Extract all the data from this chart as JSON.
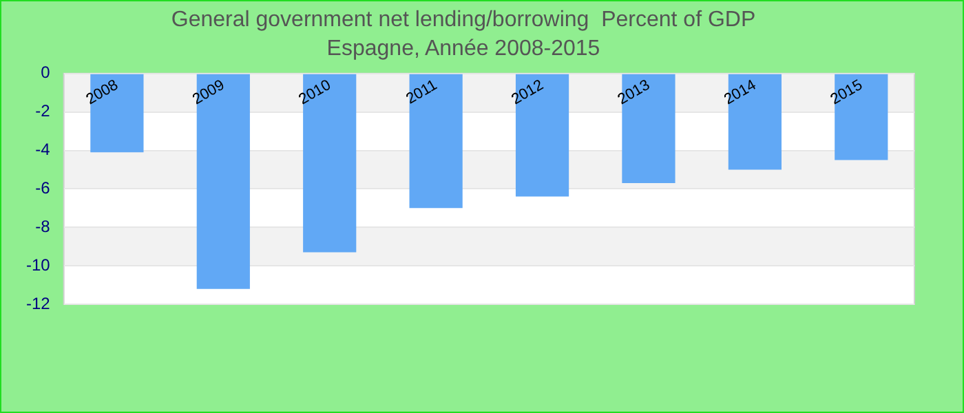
{
  "chart_data": {
    "type": "bar",
    "title": "General government net lending/borrowing  Percent of GDP",
    "subtitle": "Espagne, Année 2008-2015",
    "categories": [
      "2008",
      "2009",
      "2010",
      "2011",
      "2012",
      "2013",
      "2014",
      "2015"
    ],
    "values": [
      -4.1,
      -11.2,
      -9.3,
      -7.0,
      -6.4,
      -5.7,
      -5.0,
      -4.5
    ],
    "color": "#61a8f5",
    "ylim": [
      -12,
      0
    ],
    "yticks": [
      0,
      -2,
      -4,
      -6,
      -8,
      -10,
      -12
    ],
    "grid": "y",
    "legend": false
  }
}
